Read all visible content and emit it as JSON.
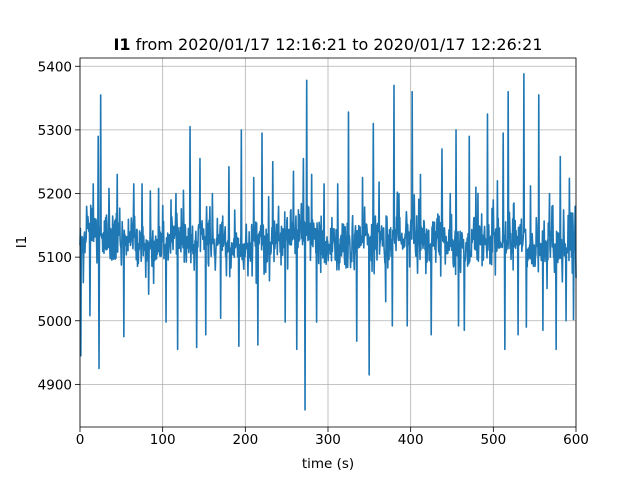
{
  "chart_data": {
    "type": "line",
    "title": {
      "prefix": "I1",
      "suffix": " from 2020/01/17 12:16:21 to 2020/01/17 12:26:21"
    },
    "xlabel": "time (s)",
    "ylabel": "I1",
    "xlim": [
      0,
      600
    ],
    "ylim": [
      4833,
      5413
    ],
    "x_ticks": [
      0,
      100,
      200,
      300,
      400,
      500,
      600
    ],
    "y_ticks": [
      4900,
      5000,
      5100,
      5200,
      5300,
      5400
    ],
    "grid": true,
    "legend": "none",
    "series": [
      {
        "color": "#1f77b4",
        "baseline": 5125,
        "noise": 20,
        "samples": 1200,
        "spikes": [
          [
            1,
            4945
          ],
          [
            4,
            5060
          ],
          [
            8,
            5180
          ],
          [
            12,
            5008
          ],
          [
            16,
            5215
          ],
          [
            19,
            5160
          ],
          [
            22,
            5290
          ],
          [
            23,
            4925
          ],
          [
            25,
            5355
          ],
          [
            35,
            5208
          ],
          [
            45,
            5230
          ],
          [
            53,
            4975
          ],
          [
            65,
            5215
          ],
          [
            75,
            5215
          ],
          [
            85,
            5204
          ],
          [
            95,
            5208
          ],
          [
            104,
            4998
          ],
          [
            110,
            5190
          ],
          [
            116,
            5200
          ],
          [
            118,
            4955
          ],
          [
            125,
            5205
          ],
          [
            133,
            5305
          ],
          [
            141,
            4958
          ],
          [
            145,
            5255
          ],
          [
            152,
            4978
          ],
          [
            160,
            5200
          ],
          [
            170,
            5004
          ],
          [
            180,
            5242
          ],
          [
            192,
            4960
          ],
          [
            195,
            5300
          ],
          [
            210,
            5225
          ],
          [
            215,
            4962
          ],
          [
            220,
            5295
          ],
          [
            228,
            5195
          ],
          [
            233,
            5250
          ],
          [
            240,
            5180
          ],
          [
            248,
            4998
          ],
          [
            258,
            5235
          ],
          [
            262,
            4955
          ],
          [
            270,
            5255
          ],
          [
            272,
            4860
          ],
          [
            274,
            5378
          ],
          [
            280,
            5230
          ],
          [
            286,
            4998
          ],
          [
            295,
            5215
          ],
          [
            305,
            5162
          ],
          [
            312,
            5215
          ],
          [
            325,
            5328
          ],
          [
            335,
            4968
          ],
          [
            342,
            5225
          ],
          [
            350,
            4915
          ],
          [
            355,
            5310
          ],
          [
            362,
            5218
          ],
          [
            370,
            5030
          ],
          [
            378,
            4992
          ],
          [
            380,
            5370
          ],
          [
            386,
            5200
          ],
          [
            396,
            4992
          ],
          [
            402,
            5360
          ],
          [
            412,
            5230
          ],
          [
            425,
            4978
          ],
          [
            430,
            5140
          ],
          [
            438,
            5270
          ],
          [
            448,
            5200
          ],
          [
            455,
            5300
          ],
          [
            458,
            4992
          ],
          [
            465,
            4985
          ],
          [
            471,
            5290
          ],
          [
            479,
            5210
          ],
          [
            486,
            5168
          ],
          [
            493,
            5325
          ],
          [
            500,
            5190
          ],
          [
            505,
            5220
          ],
          [
            512,
            5295
          ],
          [
            514,
            4955
          ],
          [
            518,
            5360
          ],
          [
            525,
            5185
          ],
          [
            530,
            4978
          ],
          [
            537,
            5388
          ],
          [
            540,
            4990
          ],
          [
            545,
            5212
          ],
          [
            552,
            5162
          ],
          [
            555,
            5355
          ],
          [
            560,
            4985
          ],
          [
            568,
            5200
          ],
          [
            571,
            5180
          ],
          [
            576,
            4955
          ],
          [
            581,
            5258
          ],
          [
            588,
            5000
          ],
          [
            592,
            5224
          ],
          [
            597,
            5002
          ],
          [
            599,
            5180
          ],
          [
            600,
            5068
          ]
        ]
      }
    ]
  }
}
